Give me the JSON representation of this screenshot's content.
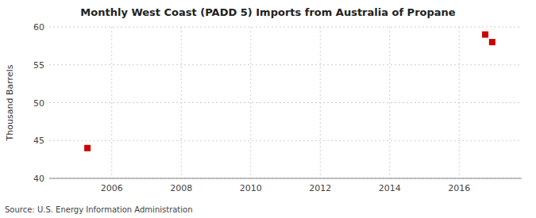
{
  "chart_data": {
    "type": "scatter",
    "title": "Monthly West Coast (PADD 5) Imports from Australia of Propane",
    "ylabel": "Thousand Barrels",
    "source": "Source: U.S. Energy Information Administration",
    "x": [
      2005.3,
      2016.75,
      2016.95
    ],
    "values": [
      44,
      59,
      58
    ],
    "color": "#cc0000",
    "marker": "square",
    "xlim": [
      2004.2,
      2017.8
    ],
    "ylim": [
      40,
      60
    ],
    "xticks": [
      2006,
      2008,
      2010,
      2012,
      2014,
      2016
    ],
    "yticks": [
      40,
      45,
      50,
      55,
      60
    ],
    "grid": true
  }
}
